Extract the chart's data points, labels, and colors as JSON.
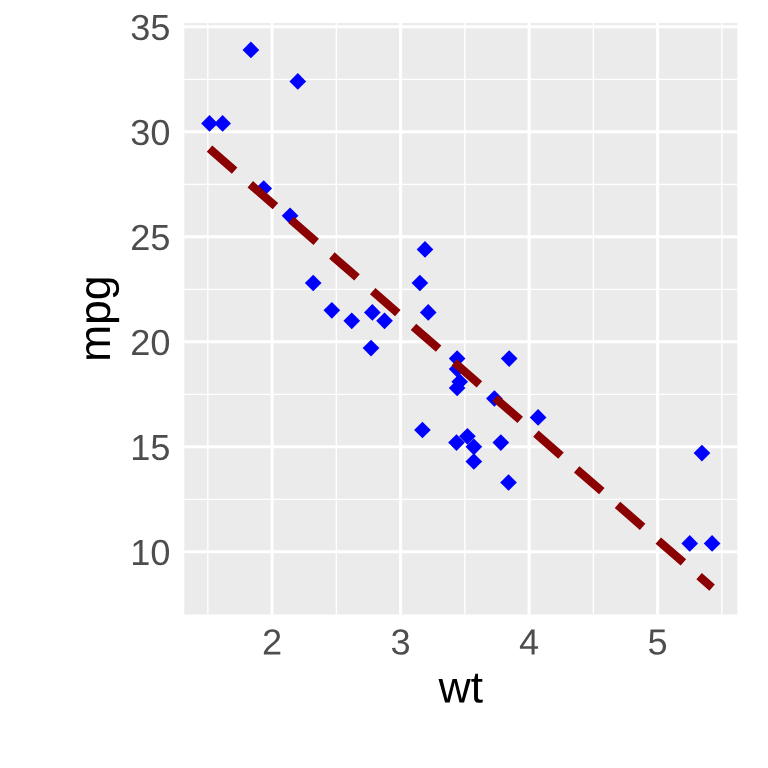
{
  "chart_data": {
    "type": "scatter",
    "xlabel": "wt",
    "ylabel": "mpg",
    "xlim": [
      1.317,
      5.62
    ],
    "ylim": [
      7.02,
      35.18
    ],
    "xticks": [
      2,
      3,
      4,
      5
    ],
    "yticks": [
      10,
      15,
      20,
      25,
      30,
      35
    ],
    "grid": true,
    "marker": "diamond",
    "series": [
      {
        "color": "#0000ff",
        "x": [
          2.62,
          2.875,
          2.32,
          3.215,
          3.44,
          3.46,
          3.57,
          3.19,
          3.15,
          3.44,
          3.44,
          4.07,
          3.73,
          3.78,
          5.25,
          5.424,
          5.345,
          2.2,
          1.615,
          1.835,
          2.465,
          3.52,
          3.435,
          3.84,
          3.845,
          1.935,
          2.14,
          1.513,
          3.17,
          2.77,
          3.57,
          2.78
        ],
        "values": [
          21.0,
          21.0,
          22.8,
          21.4,
          18.7,
          18.1,
          14.3,
          24.4,
          22.8,
          19.2,
          17.8,
          16.4,
          17.3,
          15.2,
          10.4,
          10.4,
          14.7,
          32.4,
          30.4,
          33.9,
          21.5,
          15.5,
          15.2,
          13.3,
          19.2,
          27.3,
          26.0,
          30.4,
          15.8,
          19.7,
          15.0,
          21.4
        ]
      },
      {
        "type": "line",
        "color": "#8b0000",
        "line_style": "dashed",
        "marker": "none",
        "x": [
          1.513,
          5.424
        ],
        "values": [
          29.2,
          8.3
        ]
      }
    ]
  }
}
